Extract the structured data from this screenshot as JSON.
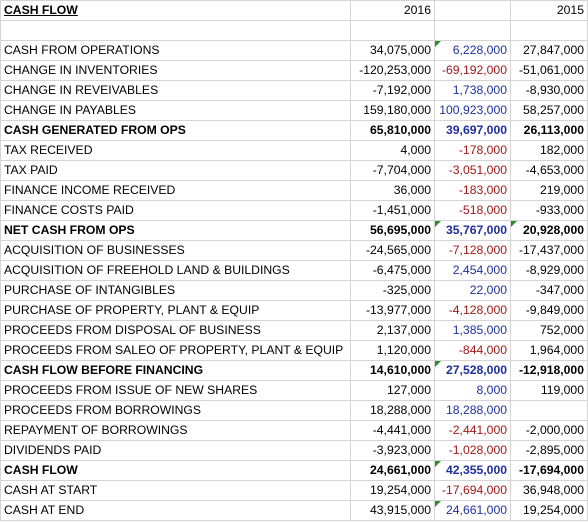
{
  "sheet": {
    "title": "CASH FLOW",
    "year_current": "2016",
    "year_prior": "2015",
    "rows": [
      {
        "label": "CASH FROM OPERATIONS",
        "a": "34,075,000",
        "b": "6,228,000",
        "b_color": "pos",
        "c": "27,847,000",
        "bold": false,
        "flag_b": true,
        "flag_c": false
      },
      {
        "label": "CHANGE IN INVENTORIES",
        "a": "-120,253,000",
        "b": "-69,192,000",
        "b_color": "neg",
        "c": "-51,061,000",
        "bold": false,
        "flag_b": false,
        "flag_c": false
      },
      {
        "label": "CHANGE IN REVEIVABLES",
        "a": "-7,192,000",
        "b": "1,738,000",
        "b_color": "pos",
        "c": "-8,930,000",
        "bold": false,
        "flag_b": false,
        "flag_c": false
      },
      {
        "label": "CHANGE IN PAYABLES",
        "a": "159,180,000",
        "b": "100,923,000",
        "b_color": "pos",
        "c": "58,257,000",
        "bold": false,
        "flag_b": false,
        "flag_c": false
      },
      {
        "label": "CASH GENERATED FROM OPS",
        "a": "65,810,000",
        "b": "39,697,000",
        "b_color": "pos",
        "c": "26,113,000",
        "bold": true,
        "flag_b": false,
        "flag_c": false
      },
      {
        "label": "TAX RECEIVED",
        "a": "4,000",
        "b": "-178,000",
        "b_color": "neg",
        "c": "182,000",
        "bold": false,
        "flag_b": false,
        "flag_c": false
      },
      {
        "label": "TAX PAID",
        "a": "-7,704,000",
        "b": "-3,051,000",
        "b_color": "neg",
        "c": "-4,653,000",
        "bold": false,
        "flag_b": false,
        "flag_c": false
      },
      {
        "label": "FINANCE INCOME RECEIVED",
        "a": "36,000",
        "b": "-183,000",
        "b_color": "neg",
        "c": "219,000",
        "bold": false,
        "flag_b": false,
        "flag_c": false
      },
      {
        "label": "FINANCE COSTS PAID",
        "a": "-1,451,000",
        "b": "-518,000",
        "b_color": "neg",
        "c": "-933,000",
        "bold": false,
        "flag_b": false,
        "flag_c": false
      },
      {
        "label": "NET CASH FROM OPS",
        "a": "56,695,000",
        "b": "35,767,000",
        "b_color": "pos",
        "c": "20,928,000",
        "bold": true,
        "flag_b": true,
        "flag_c": true
      },
      {
        "label": "ACQUISITION OF BUSINESSES",
        "a": "-24,565,000",
        "b": "-7,128,000",
        "b_color": "neg",
        "c": "-17,437,000",
        "bold": false,
        "flag_b": false,
        "flag_c": false
      },
      {
        "label": "ACQUISITION OF FREEHOLD LAND & BUILDINGS",
        "a": "-6,475,000",
        "b": "2,454,000",
        "b_color": "pos",
        "c": "-8,929,000",
        "bold": false,
        "flag_b": false,
        "flag_c": false
      },
      {
        "label": "PURCHASE OF INTANGIBLES",
        "a": "-325,000",
        "b": "22,000",
        "b_color": "pos",
        "c": "-347,000",
        "bold": false,
        "flag_b": false,
        "flag_c": false
      },
      {
        "label": "PURCHASE OF PROPERTY, PLANT & EQUIP",
        "a": "-13,977,000",
        "b": "-4,128,000",
        "b_color": "neg",
        "c": "-9,849,000",
        "bold": false,
        "flag_b": false,
        "flag_c": false
      },
      {
        "label": "PROCEEDS FROM DISPOSAL OF BUSINESS",
        "a": "2,137,000",
        "b": "1,385,000",
        "b_color": "pos",
        "c": "752,000",
        "bold": false,
        "flag_b": false,
        "flag_c": false
      },
      {
        "label": "PROCEEDS FROM SALEO OF PROPERTY, PLANT & EQUIP",
        "a": "1,120,000",
        "b": "-844,000",
        "b_color": "neg",
        "c": "1,964,000",
        "bold": false,
        "flag_b": false,
        "flag_c": false
      },
      {
        "label": "CASH FLOW BEFORE FINANCING",
        "a": "14,610,000",
        "b": "27,528,000",
        "b_color": "pos",
        "c": "-12,918,000",
        "bold": true,
        "flag_b": true,
        "flag_c": false
      },
      {
        "label": "PROCEEDS FROM ISSUE OF NEW SHARES",
        "a": "127,000",
        "b": "8,000",
        "b_color": "pos",
        "c": "119,000",
        "bold": false,
        "flag_b": false,
        "flag_c": false
      },
      {
        "label": "PROCEEDS FROM BORROWINGS",
        "a": "18,288,000",
        "b": "18,288,000",
        "b_color": "pos",
        "c": "",
        "bold": false,
        "flag_b": false,
        "flag_c": false
      },
      {
        "label": "REPAYMENT OF BORROWINGS",
        "a": "-4,441,000",
        "b": "-2,441,000",
        "b_color": "neg",
        "c": "-2,000,000",
        "bold": false,
        "flag_b": false,
        "flag_c": false
      },
      {
        "label": "DIVIDENDS PAID",
        "a": "-3,923,000",
        "b": "-1,028,000",
        "b_color": "neg",
        "c": "-2,895,000",
        "bold": false,
        "flag_b": false,
        "flag_c": false
      },
      {
        "label": "CASH FLOW",
        "a": "24,661,000",
        "b": "42,355,000",
        "b_color": "pos",
        "c": "-17,694,000",
        "bold": true,
        "flag_b": true,
        "flag_c": false
      },
      {
        "label": "CASH AT START",
        "a": "19,254,000",
        "b": "-17,694,000",
        "b_color": "neg",
        "c": "36,948,000",
        "bold": false,
        "flag_b": false,
        "flag_c": false
      },
      {
        "label": "CASH AT END",
        "a": "43,915,000",
        "b": "24,661,000",
        "b_color": "pos",
        "c": "19,254,000",
        "bold": false,
        "flag_b": true,
        "flag_c": false
      }
    ]
  },
  "colors": {
    "positive_diff": "#1f2f9e",
    "negative_diff": "#a01818",
    "flag": "#2e8b2e",
    "gridline": "#d4d4d4"
  }
}
